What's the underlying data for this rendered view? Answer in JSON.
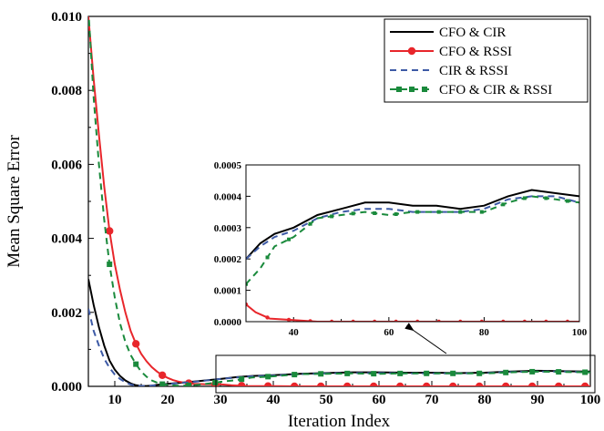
{
  "chart_data": {
    "type": "line",
    "xlabel": "Iteration Index",
    "ylabel": "Mean Square Error",
    "xlim": [
      5,
      100
    ],
    "ylim": [
      0,
      0.01
    ],
    "xticks": [
      "10",
      "20",
      "30",
      "40",
      "50",
      "60",
      "70",
      "80",
      "90",
      "100"
    ],
    "yticks": [
      "0.000",
      "0.002",
      "0.004",
      "0.006",
      "0.008",
      "0.010"
    ],
    "legend_position": "top-right",
    "grid": false,
    "series": [
      {
        "name": "CFO & CIR",
        "color": "#000000",
        "style": "solid",
        "x": [
          5,
          6,
          7,
          8,
          9,
          10,
          11,
          12,
          13,
          14,
          15,
          16,
          17,
          18,
          20,
          25,
          30,
          33,
          36,
          40,
          45,
          50,
          55,
          60,
          65,
          70,
          75,
          80,
          85,
          90,
          95,
          100
        ],
        "y": [
          0.0029,
          0.0022,
          0.0016,
          0.0011,
          0.0007,
          0.00045,
          0.00028,
          0.00016,
          8e-05,
          3e-05,
          1e-05,
          1e-05,
          2e-05,
          4e-05,
          7e-05,
          0.00013,
          0.0002,
          0.00025,
          0.00028,
          0.0003,
          0.00034,
          0.00036,
          0.00038,
          0.00038,
          0.00037,
          0.00037,
          0.00036,
          0.00037,
          0.0004,
          0.00042,
          0.00041,
          0.0004
        ]
      },
      {
        "name": "CFO & RSSI",
        "color": "#e8262b",
        "style": "solid-marker",
        "x": [
          5,
          6,
          7,
          8,
          9,
          10,
          11,
          12,
          13,
          14,
          15,
          16,
          17,
          18,
          19,
          20,
          21,
          22,
          23,
          24,
          25,
          27,
          30,
          32,
          35,
          40,
          45,
          50,
          55,
          60,
          65,
          70,
          75,
          80,
          85,
          90,
          95,
          100
        ],
        "y": [
          0.01,
          0.0083,
          0.0068,
          0.0054,
          0.0042,
          0.0033,
          0.0026,
          0.002,
          0.0015,
          0.00115,
          0.00088,
          0.00068,
          0.00052,
          0.0004,
          0.0003,
          0.00023,
          0.00017,
          0.00013,
          0.0001,
          8.5e-05,
          7e-05,
          6e-05,
          5.5e-05,
          3e-05,
          1e-05,
          5e-06,
          0,
          0,
          0,
          0,
          0,
          0,
          0,
          0,
          0,
          0,
          0,
          0
        ]
      },
      {
        "name": "CIR & RSSI",
        "color": "#3d5aa6",
        "style": "dashed",
        "x": [
          5,
          6,
          7,
          8,
          9,
          10,
          11,
          12,
          13,
          14,
          15,
          16,
          18,
          20,
          25,
          30,
          33,
          36,
          40,
          45,
          50,
          55,
          60,
          65,
          70,
          75,
          80,
          85,
          90,
          95,
          100
        ],
        "y": [
          0.0021,
          0.0015,
          0.0011,
          0.00075,
          0.0005,
          0.00032,
          0.0002,
          0.00011,
          5e-05,
          2e-05,
          1e-05,
          1e-05,
          3e-05,
          6e-05,
          0.00012,
          0.0002,
          0.00024,
          0.00027,
          0.00029,
          0.00033,
          0.00035,
          0.00036,
          0.00036,
          0.00035,
          0.00035,
          0.00035,
          0.00036,
          0.00039,
          0.0004,
          0.0004,
          0.00038
        ]
      },
      {
        "name": "CFO & CIR & RSSI",
        "color": "#1a8a3c",
        "style": "dashed-marker",
        "x": [
          5,
          6,
          7,
          8,
          9,
          10,
          11,
          12,
          13,
          14,
          15,
          16,
          17,
          18,
          19,
          20,
          22,
          25,
          28,
          30,
          33,
          36,
          40,
          45,
          50,
          55,
          60,
          65,
          70,
          75,
          80,
          85,
          90,
          95,
          100
        ],
        "y": [
          0.0102,
          0.0078,
          0.006,
          0.0045,
          0.0033,
          0.0024,
          0.0017,
          0.0012,
          0.00085,
          0.0006,
          0.0004,
          0.00026,
          0.00016,
          0.0001,
          6e-05,
          4e-05,
          2e-05,
          3e-05,
          8e-05,
          0.00012,
          0.00017,
          0.00024,
          0.00027,
          0.00033,
          0.00034,
          0.00035,
          0.00034,
          0.00035,
          0.00035,
          0.00035,
          0.00035,
          0.00038,
          0.0004,
          0.00039,
          0.00038
        ]
      }
    ],
    "inset": {
      "xlim": [
        30,
        100
      ],
      "ylim": [
        0,
        0.0005
      ],
      "xticks": [
        "40",
        "60",
        "80",
        "100"
      ],
      "yticks": [
        "0.0000",
        "0.0001",
        "0.0002",
        "0.0003",
        "0.0004",
        "0.0005"
      ]
    }
  }
}
